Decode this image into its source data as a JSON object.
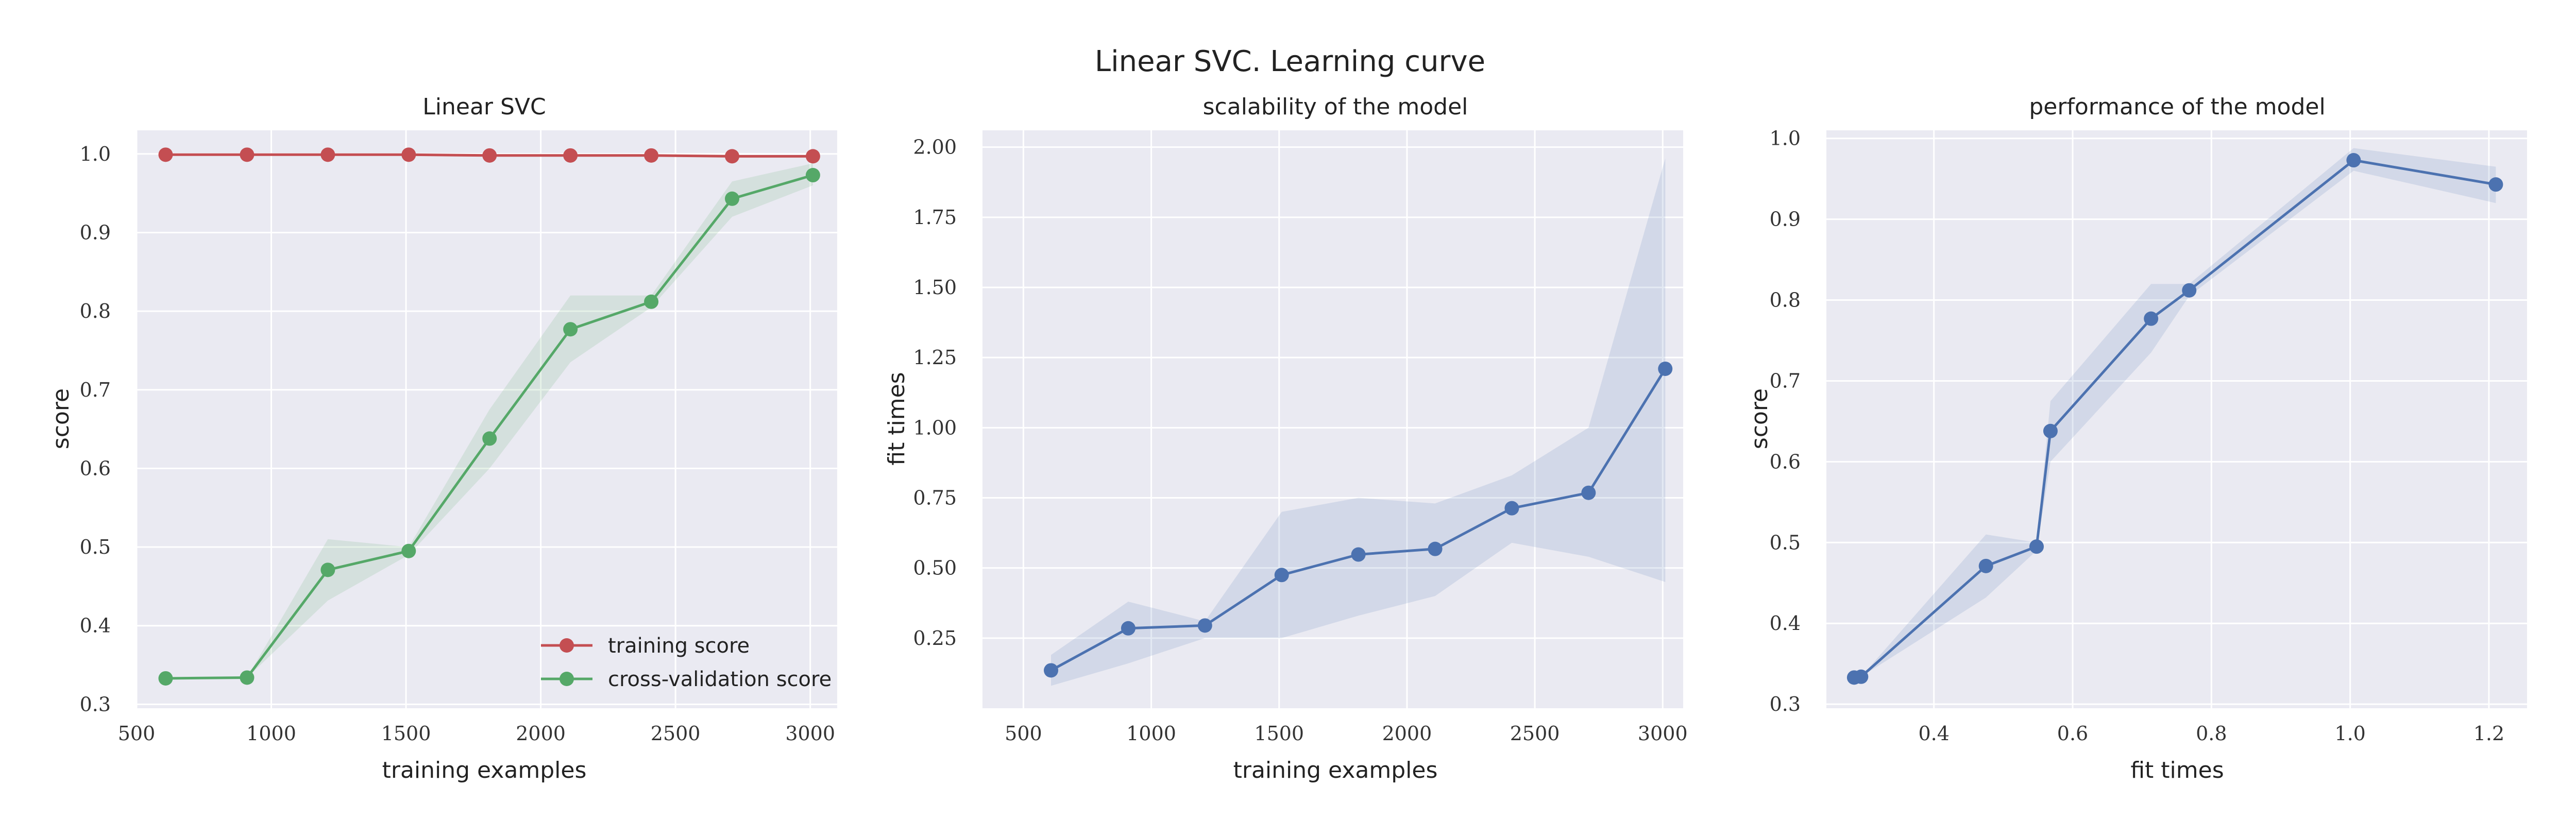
{
  "figure_title": "Linear SVC. Learning curve",
  "colors": {
    "panel_bg": "#EAEAF2",
    "grid": "#FFFFFF",
    "training": "#C44E52",
    "cv": "#55A868",
    "blue": "#4C72B0"
  },
  "chart_data": [
    {
      "type": "line",
      "title": "Linear SVC",
      "xlabel": "training examples",
      "ylabel": "score",
      "xlim": [
        500,
        3100
      ],
      "ylim": [
        0.295,
        1.03
      ],
      "xticks": [
        500,
        1000,
        1500,
        2000,
        2500,
        3000
      ],
      "yticks": [
        0.3,
        0.4,
        0.5,
        0.6,
        0.7,
        0.8,
        0.9,
        1.0
      ],
      "xticklabels": [
        "500",
        "1000",
        "1500",
        "2000",
        "2500",
        "3000"
      ],
      "yticklabels": [
        "0.3",
        "0.4",
        "0.5",
        "0.6",
        "0.7",
        "0.8",
        "0.9",
        "1.0"
      ],
      "grid": true,
      "legend_position": "lower-right",
      "series": [
        {
          "name": "training score",
          "color": "#C44E52",
          "x": [
            608,
            910,
            1210,
            1510,
            1810,
            2110,
            2410,
            2710,
            3010
          ],
          "y": [
            0.999,
            0.999,
            0.999,
            0.999,
            0.998,
            0.998,
            0.998,
            0.997,
            0.997
          ],
          "lower": [
            0.998,
            0.998,
            0.998,
            0.998,
            0.997,
            0.997,
            0.997,
            0.995,
            0.995
          ],
          "upper": [
            1.0,
            1.0,
            1.0,
            1.0,
            0.999,
            0.999,
            0.999,
            0.998,
            0.998
          ]
        },
        {
          "name": "cross-validation score",
          "color": "#55A868",
          "x": [
            608,
            910,
            1210,
            1510,
            1810,
            2110,
            2410,
            2710,
            3010
          ],
          "y": [
            0.333,
            0.334,
            0.471,
            0.495,
            0.638,
            0.777,
            0.812,
            0.943,
            0.973
          ],
          "lower": [
            0.333,
            0.334,
            0.432,
            0.49,
            0.6,
            0.735,
            0.805,
            0.92,
            0.96
          ],
          "upper": [
            0.333,
            0.334,
            0.51,
            0.5,
            0.675,
            0.82,
            0.82,
            0.965,
            0.988
          ]
        }
      ]
    },
    {
      "type": "line",
      "title": "scalability of the model",
      "xlabel": "training examples",
      "ylabel": "fit times",
      "xlim": [
        340,
        3080
      ],
      "ylim": [
        0.0,
        2.06
      ],
      "xticks": [
        500,
        1000,
        1500,
        2000,
        2500,
        3000
      ],
      "yticks": [
        0.25,
        0.5,
        0.75,
        1.0,
        1.25,
        1.5,
        1.75,
        2.0
      ],
      "xticklabels": [
        "500",
        "1000",
        "1500",
        "2000",
        "2500",
        "3000"
      ],
      "yticklabels": [
        "0.25",
        "0.50",
        "0.75",
        "1.00",
        "1.25",
        "1.50",
        "1.75",
        "2.00"
      ],
      "grid": true,
      "series": [
        {
          "color": "#4C72B0",
          "x": [
            608,
            910,
            1210,
            1510,
            1810,
            2110,
            2410,
            2710,
            3010
          ],
          "y": [
            0.135,
            0.285,
            0.295,
            0.475,
            0.548,
            0.568,
            0.713,
            0.768,
            1.21
          ],
          "lower": [
            0.08,
            0.16,
            0.25,
            0.25,
            0.33,
            0.4,
            0.59,
            0.54,
            0.45
          ],
          "upper": [
            0.19,
            0.38,
            0.31,
            0.7,
            0.75,
            0.73,
            0.83,
            1.0,
            1.96
          ]
        }
      ]
    },
    {
      "type": "line",
      "title": "performance of the model",
      "xlabel": "fit times",
      "ylabel": "score",
      "xlim": [
        0.245,
        1.255
      ],
      "ylim": [
        0.295,
        1.01
      ],
      "xticks": [
        0.4,
        0.6,
        0.8,
        1.0,
        1.2
      ],
      "yticks": [
        0.3,
        0.4,
        0.5,
        0.6,
        0.7,
        0.8,
        0.9,
        1.0
      ],
      "xticklabels": [
        "0.4",
        "0.6",
        "0.8",
        "1.0",
        "1.2"
      ],
      "yticklabels": [
        "0.3",
        "0.4",
        "0.5",
        "0.6",
        "0.7",
        "0.8",
        "0.9",
        "1.0"
      ],
      "grid": true,
      "series": [
        {
          "color": "#4C72B0",
          "x": [
            0.285,
            0.295,
            0.475,
            0.548,
            0.568,
            0.713,
            0.768,
            1.005,
            1.21
          ],
          "y": [
            0.333,
            0.334,
            0.471,
            0.495,
            0.638,
            0.777,
            0.812,
            0.973,
            0.943
          ],
          "lower": [
            0.333,
            0.334,
            0.432,
            0.49,
            0.6,
            0.735,
            0.805,
            0.96,
            0.92
          ],
          "upper": [
            0.333,
            0.334,
            0.51,
            0.5,
            0.675,
            0.82,
            0.82,
            0.988,
            0.965
          ]
        }
      ]
    }
  ]
}
